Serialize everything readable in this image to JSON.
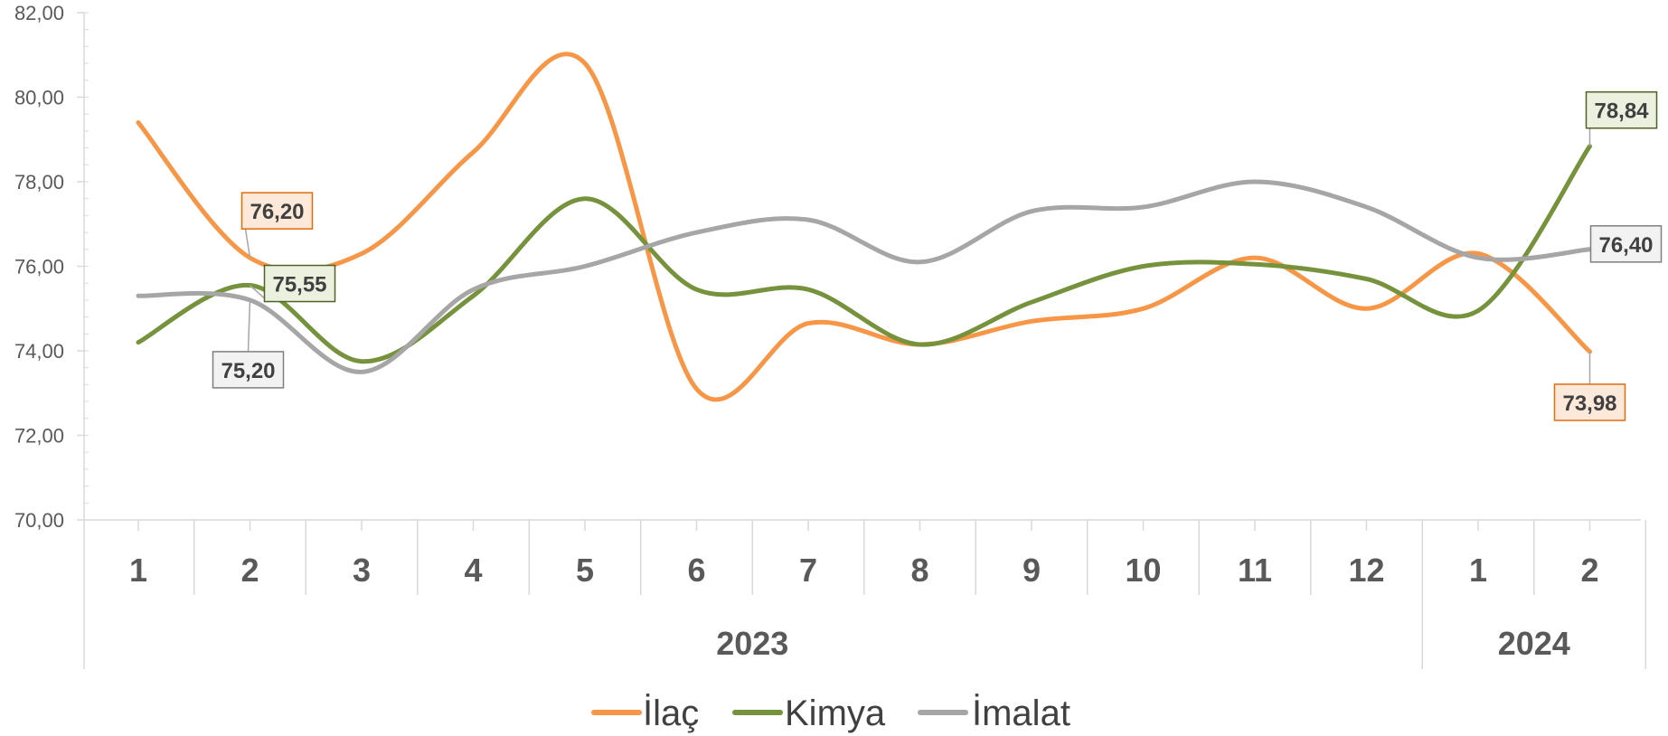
{
  "chart_data": {
    "type": "line",
    "title": "",
    "xlabel": "",
    "ylabel": "",
    "categories": [
      "1",
      "2",
      "3",
      "4",
      "5",
      "6",
      "7",
      "8",
      "9",
      "10",
      "11",
      "12",
      "1",
      "2"
    ],
    "groups": [
      {
        "label": "2023",
        "start": 0,
        "end": 11
      },
      {
        "label": "2024",
        "start": 12,
        "end": 13
      }
    ],
    "ylim": [
      70,
      82
    ],
    "yticks": [
      70,
      72,
      74,
      76,
      78,
      80,
      82
    ],
    "ytick_labels": [
      "70,00",
      "72,00",
      "74,00",
      "76,00",
      "78,00",
      "80,00",
      "82,00"
    ],
    "smooth": true,
    "legend_position": "bottom",
    "series": [
      {
        "name": "İlaç",
        "color": "#F79646",
        "values": [
          79.4,
          76.2,
          76.3,
          78.7,
          80.8,
          73.1,
          74.65,
          74.15,
          74.7,
          75.0,
          76.2,
          75.0,
          76.3,
          73.98
        ],
        "labels": [
          {
            "index": 1,
            "text": "76,20"
          },
          {
            "index": 13,
            "text": "73,98"
          }
        ],
        "label_fill": "#FDE9D9",
        "label_border": "#E26B0A"
      },
      {
        "name": "Kimya",
        "color": "#76923C",
        "values": [
          74.2,
          75.55,
          73.75,
          75.3,
          77.6,
          75.45,
          75.45,
          74.15,
          75.15,
          76.0,
          76.05,
          75.7,
          74.95,
          78.84
        ],
        "labels": [
          {
            "index": 1,
            "text": "75,55"
          },
          {
            "index": 13,
            "text": "78,84"
          }
        ],
        "label_fill": "#EBF1DE",
        "label_border": "#4F6228"
      },
      {
        "name": "İmalat",
        "color": "#A6A6A6",
        "values": [
          75.3,
          75.2,
          73.5,
          75.45,
          76.0,
          76.8,
          77.1,
          76.1,
          77.3,
          77.4,
          78.0,
          77.4,
          76.2,
          76.4
        ],
        "labels": [
          {
            "index": 1,
            "text": "75,20"
          },
          {
            "index": 13,
            "text": "76,40"
          }
        ],
        "label_fill": "#F2F2F2",
        "label_border": "#7F7F7F"
      }
    ]
  }
}
